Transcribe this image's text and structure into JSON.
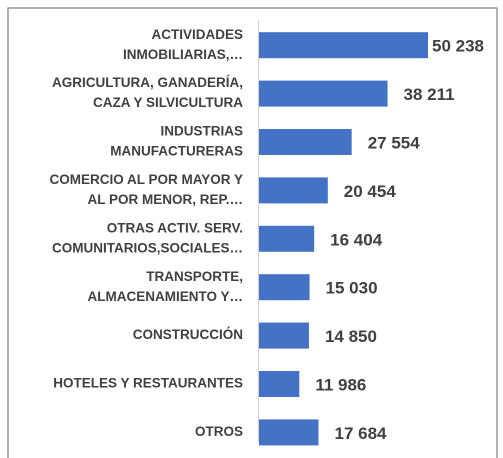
{
  "chart_data": {
    "type": "bar",
    "orientation": "horizontal",
    "color": "#4472c4",
    "categories": [
      [
        "ACTIVIDADES",
        "INMOBILIARIAS,…"
      ],
      [
        "AGRICULTURA, GANADERÍA,",
        "CAZA Y SILVICULTURA"
      ],
      [
        "INDUSTRIAS",
        "MANUFACTURERAS"
      ],
      [
        "COMERCIO AL POR MAYOR Y",
        "AL POR MENOR, REP.…"
      ],
      [
        "OTRAS ACTIV. SERV.",
        "COMUNITARIOS,SOCIALES…"
      ],
      [
        "TRANSPORTE,",
        "ALMACENAMIENTO Y…"
      ],
      [
        "CONSTRUCCIÓN"
      ],
      [
        "HOTELES Y RESTAURANTES"
      ],
      [
        "OTROS"
      ]
    ],
    "values": [
      50238,
      38211,
      27554,
      20454,
      16404,
      15030,
      14850,
      11986,
      17684
    ],
    "value_labels": [
      "50 238",
      "38 211",
      "27 554",
      "20 454",
      "16 404",
      "15 030",
      "14 850",
      "11 986",
      "17 684"
    ]
  }
}
